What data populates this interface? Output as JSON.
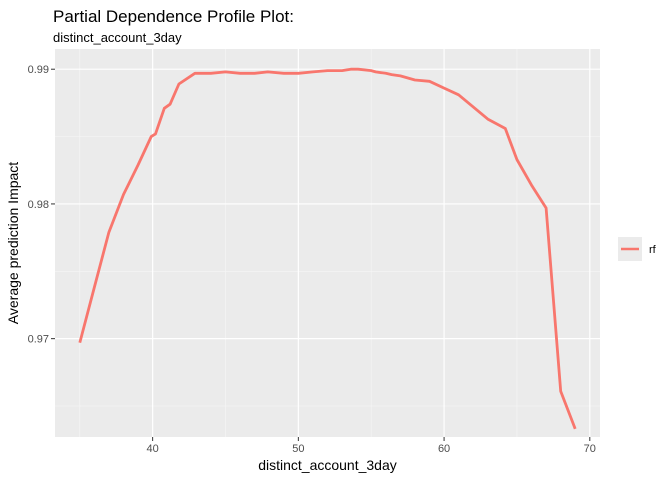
{
  "chart_data": {
    "type": "line",
    "title": "Partial Dependence Profile Plot:",
    "subtitle": "distinct_account_3day",
    "xlabel": "distinct_account_3day",
    "ylabel": "Average prediction Impact",
    "xlim": [
      33.3,
      70.7
    ],
    "ylim": [
      0.9627,
      0.9915
    ],
    "x_ticks": [
      40,
      50,
      60,
      70
    ],
    "y_ticks": [
      0.97,
      0.98,
      0.99
    ],
    "x_tick_labels": [
      "40",
      "50",
      "60",
      "70"
    ],
    "y_tick_labels": [
      "0.97",
      "0.98",
      "0.99"
    ],
    "grid": true,
    "legend_position": "right",
    "series": [
      {
        "name": "rf",
        "color": "#F8766D",
        "x": [
          35,
          36,
          37,
          38,
          39,
          39.9,
          40.2,
          40.8,
          41.2,
          41.8,
          42.9,
          44,
          45,
          46,
          47,
          47.9,
          49,
          50,
          51,
          52,
          53,
          53.6,
          54.1,
          55,
          55.3,
          56,
          56.4,
          57,
          58,
          59,
          60,
          61,
          62,
          63,
          64.2,
          65,
          66,
          67,
          68,
          69
        ],
        "y": [
          0.9697,
          0.9738,
          0.9779,
          0.9807,
          0.9829,
          0.985,
          0.9852,
          0.9871,
          0.9874,
          0.9889,
          0.9897,
          0.9897,
          0.9898,
          0.9897,
          0.9897,
          0.9898,
          0.9897,
          0.9897,
          0.9898,
          0.9899,
          0.9899,
          0.99,
          0.99,
          0.9899,
          0.9898,
          0.9897,
          0.9896,
          0.9895,
          0.9892,
          0.9891,
          0.9886,
          0.9881,
          0.9872,
          0.9863,
          0.9856,
          0.9833,
          0.9814,
          0.9797,
          0.9661,
          0.9633
        ]
      }
    ]
  }
}
